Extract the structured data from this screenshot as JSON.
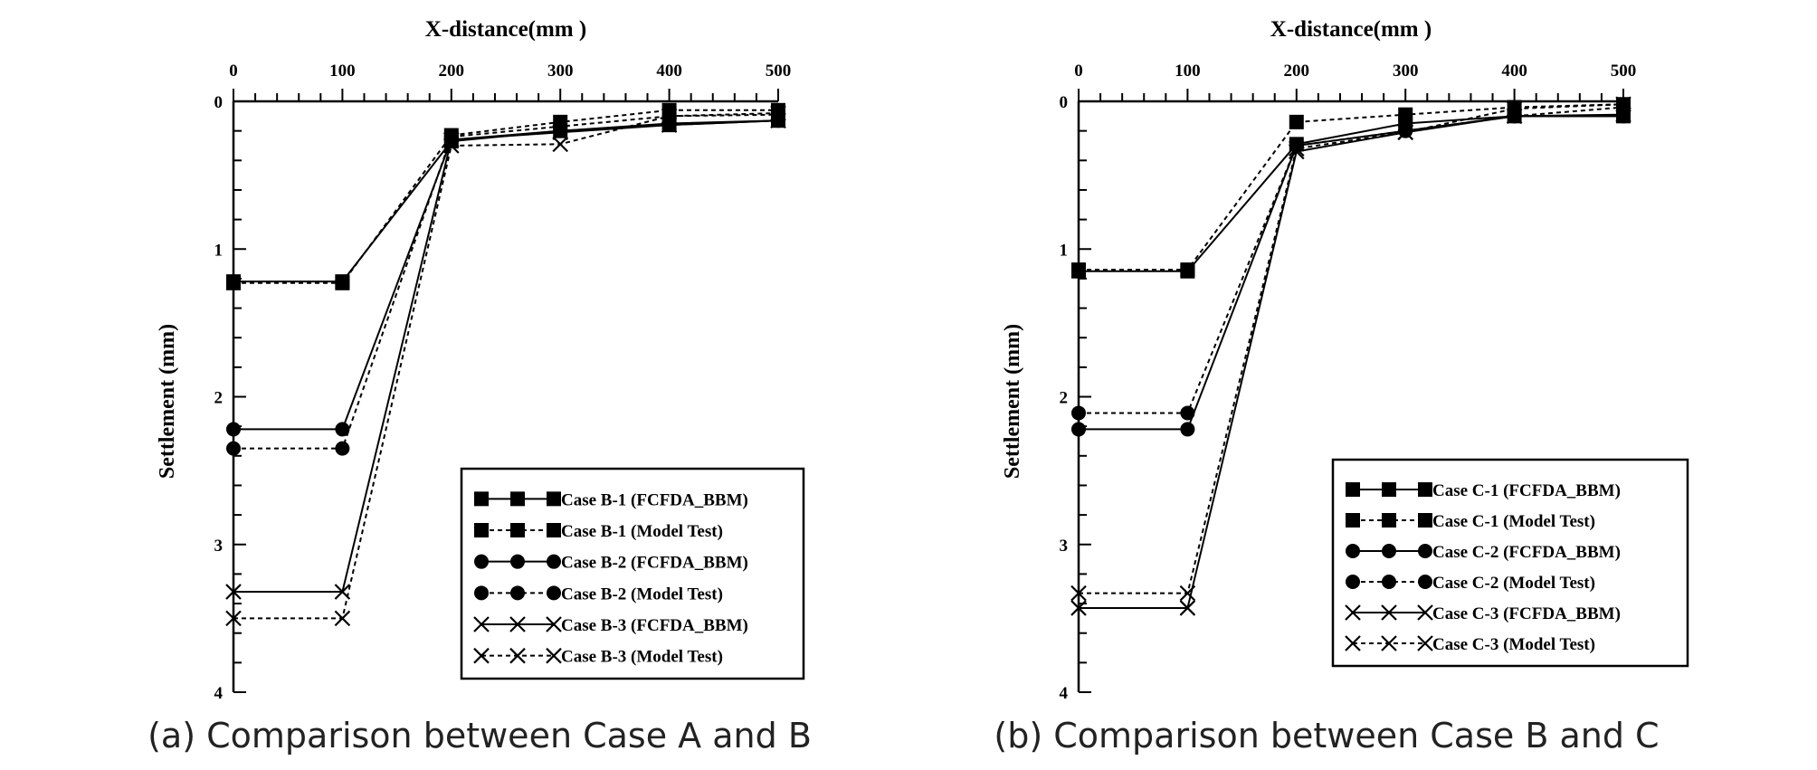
{
  "chart_data": [
    {
      "type": "line",
      "caption": "(a) Comparison between Case A and B",
      "xlabel": "X-distance(mm )",
      "ylabel": "Settlement (mm)",
      "xlim": [
        0,
        500
      ],
      "ylim": [
        0,
        4
      ],
      "y_inverted": true,
      "x_axis_position": "top",
      "x_ticks": [
        "0",
        "100",
        "200",
        "300",
        "400",
        "500"
      ],
      "y_ticks": [
        "0",
        "1",
        "2",
        "3",
        "4"
      ],
      "grid": false,
      "legend_position": "bottom-right",
      "x": [
        0,
        100,
        200,
        300,
        400,
        500
      ],
      "series": [
        {
          "name": "Case B-1 (FCFDA_BBM)",
          "marker": "square",
          "line": "solid",
          "values": [
            1.22,
            1.22,
            0.27,
            0.2,
            0.16,
            0.13
          ]
        },
        {
          "name": "Case B-1 (Model Test)",
          "marker": "square",
          "line": "dashed",
          "values": [
            1.23,
            1.23,
            0.23,
            0.14,
            0.06,
            0.06
          ]
        },
        {
          "name": "Case B-2 (FCFDA_BBM)",
          "marker": "circle",
          "line": "solid",
          "values": [
            2.22,
            2.22,
            0.26,
            0.2,
            0.15,
            0.13
          ]
        },
        {
          "name": "Case B-2 (Model Test)",
          "marker": "circle",
          "line": "dashed",
          "values": [
            2.35,
            2.35,
            0.24,
            0.17,
            0.1,
            0.09
          ]
        },
        {
          "name": "Case B-3 (FCFDA_BBM)",
          "marker": "x",
          "line": "solid",
          "values": [
            3.32,
            3.32,
            0.26,
            0.21,
            0.16,
            0.13
          ]
        },
        {
          "name": "Case B-3 (Model Test)",
          "marker": "x",
          "line": "dashed",
          "values": [
            3.5,
            3.5,
            0.3,
            0.29,
            0.1,
            0.08
          ]
        }
      ]
    },
    {
      "type": "line",
      "caption": "(b) Comparison between Case B and C",
      "xlabel": "X-distance(mm )",
      "ylabel": "Settlement (mm)",
      "xlim": [
        0,
        500
      ],
      "ylim": [
        0,
        4
      ],
      "y_inverted": true,
      "x_axis_position": "top",
      "x_ticks": [
        "0",
        "100",
        "200",
        "300",
        "400",
        "500"
      ],
      "y_ticks": [
        "0",
        "1",
        "2",
        "3",
        "4"
      ],
      "grid": false,
      "legend_position": "bottom-right",
      "x": [
        0,
        100,
        200,
        300,
        400,
        500
      ],
      "series": [
        {
          "name": "Case C-1 (FCFDA_BBM)",
          "marker": "square",
          "line": "solid",
          "values": [
            1.15,
            1.15,
            0.29,
            0.15,
            0.1,
            0.1
          ]
        },
        {
          "name": "Case C-1 (Model Test)",
          "marker": "square",
          "line": "dashed",
          "values": [
            1.14,
            1.14,
            0.14,
            0.09,
            0.04,
            0.02
          ]
        },
        {
          "name": "Case C-2 (FCFDA_BBM)",
          "marker": "circle",
          "line": "solid",
          "values": [
            2.22,
            2.22,
            0.3,
            0.2,
            0.1,
            0.1
          ]
        },
        {
          "name": "Case C-2 (Model Test)",
          "marker": "circle",
          "line": "dashed",
          "values": [
            2.11,
            2.11,
            0.3,
            0.2,
            0.1,
            0.04
          ]
        },
        {
          "name": "Case C-3 (FCFDA_BBM)",
          "marker": "x",
          "line": "solid",
          "values": [
            3.43,
            3.43,
            0.34,
            0.21,
            0.1,
            0.09
          ]
        },
        {
          "name": "Case C-3 (Model Test)",
          "marker": "x",
          "line": "dashed",
          "values": [
            3.33,
            3.33,
            0.32,
            0.21,
            0.05,
            0.02
          ]
        }
      ]
    }
  ]
}
